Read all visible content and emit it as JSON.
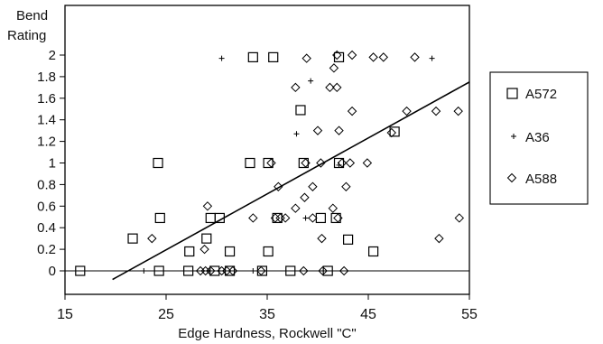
{
  "chart_data": {
    "type": "scatter",
    "title": "",
    "ylabel_lines": [
      "Bend",
      "Rating"
    ],
    "xlabel": "Edge Hardness, Rockwell \"C\"",
    "xlim": [
      15,
      55
    ],
    "ylim": [
      -0.1,
      2.1
    ],
    "xticks": [
      15,
      25,
      35,
      45,
      55
    ],
    "yticks": [
      0,
      0.2,
      0.4,
      0.6,
      0.8,
      1,
      1.2,
      1.4,
      1.6,
      1.8,
      2
    ],
    "grid": false,
    "legend_position": "right",
    "series": [
      {
        "name": "A572",
        "marker": "square",
        "points": [
          [
            16.5,
            0
          ],
          [
            24.3,
            0
          ],
          [
            27.2,
            0
          ],
          [
            29.8,
            0
          ],
          [
            31.3,
            0
          ],
          [
            34.5,
            0
          ],
          [
            37.3,
            0
          ],
          [
            41,
            0
          ],
          [
            21.7,
            0.3
          ],
          [
            29,
            0.3
          ],
          [
            27.3,
            0.18
          ],
          [
            31.3,
            0.18
          ],
          [
            35.1,
            0.18
          ],
          [
            45.5,
            0.18
          ],
          [
            24.4,
            0.49
          ],
          [
            29.4,
            0.49
          ],
          [
            30.3,
            0.49
          ],
          [
            36,
            0.49
          ],
          [
            40.3,
            0.49
          ],
          [
            41.8,
            0.49
          ],
          [
            24.2,
            1
          ],
          [
            33.3,
            1
          ],
          [
            35.1,
            1
          ],
          [
            38.6,
            1
          ],
          [
            42.1,
            1
          ],
          [
            43,
            0.29
          ],
          [
            47.6,
            1.29
          ],
          [
            38.3,
            1.49
          ],
          [
            33.6,
            1.98
          ],
          [
            35.6,
            1.98
          ],
          [
            42.1,
            1.98
          ]
        ]
      },
      {
        "name": "A36",
        "marker": "plus",
        "points": [
          [
            22.8,
            0
          ],
          [
            29.2,
            0
          ],
          [
            33.6,
            0
          ],
          [
            38.8,
            0.49
          ],
          [
            42.1,
            0.98
          ],
          [
            37.9,
            1.27
          ],
          [
            39.3,
            1.76
          ],
          [
            30.5,
            1.97
          ],
          [
            51.3,
            1.97
          ]
        ]
      },
      {
        "name": "A588",
        "marker": "diamond",
        "points": [
          [
            28.4,
            0
          ],
          [
            28.9,
            0
          ],
          [
            29.4,
            0
          ],
          [
            30.5,
            0
          ],
          [
            31,
            0
          ],
          [
            31.6,
            0
          ],
          [
            34.4,
            0
          ],
          [
            38.6,
            0
          ],
          [
            40.5,
            0
          ],
          [
            42.6,
            0
          ],
          [
            23.6,
            0.3
          ],
          [
            28.8,
            0.2
          ],
          [
            29.1,
            0.6
          ],
          [
            33.6,
            0.49
          ],
          [
            35.8,
            0.49
          ],
          [
            36.3,
            0.49
          ],
          [
            36.8,
            0.49
          ],
          [
            39.5,
            0.49
          ],
          [
            42,
            0.49
          ],
          [
            52,
            0.3
          ],
          [
            54,
            0.49
          ],
          [
            40.4,
            0.3
          ],
          [
            37.8,
            0.58
          ],
          [
            39.5,
            0.78
          ],
          [
            41.5,
            0.58
          ],
          [
            38.7,
            0.68
          ],
          [
            42.8,
            0.78
          ],
          [
            35.4,
            1
          ],
          [
            38.8,
            1
          ],
          [
            40.3,
            1
          ],
          [
            42.4,
            1
          ],
          [
            43.2,
            1
          ],
          [
            44.9,
            1
          ],
          [
            36.1,
            0.78
          ],
          [
            37.8,
            1.7
          ],
          [
            40,
            1.3
          ],
          [
            41.2,
            1.7
          ],
          [
            41.9,
            1.7
          ],
          [
            42.1,
            1.3
          ],
          [
            43.4,
            1.48
          ],
          [
            47.3,
            1.28
          ],
          [
            48.8,
            1.48
          ],
          [
            51.7,
            1.48
          ],
          [
            53.9,
            1.48
          ],
          [
            38.9,
            1.97
          ],
          [
            41.6,
            1.88
          ],
          [
            41.9,
            2
          ],
          [
            43.4,
            2
          ],
          [
            45.5,
            1.98
          ],
          [
            46.5,
            1.98
          ],
          [
            49.6,
            1.98
          ]
        ]
      }
    ],
    "trendline": {
      "x": [
        19.7,
        55
      ],
      "y": [
        -0.08,
        1.75
      ]
    }
  }
}
